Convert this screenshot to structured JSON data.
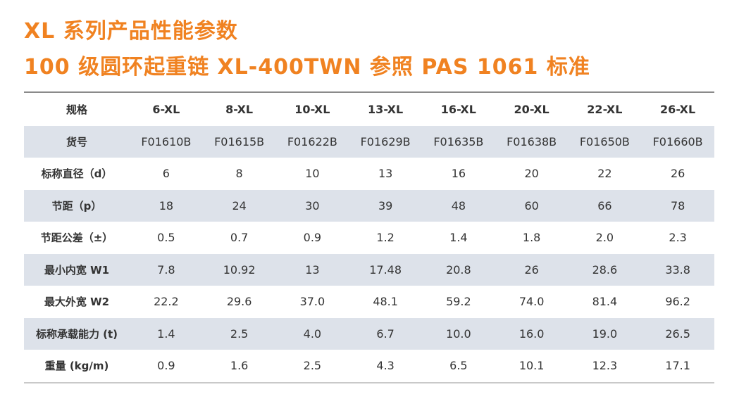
{
  "title": {
    "line1": "XL 系列产品性能参数",
    "line2": "100 级圆环起重链 XL-400TWN  参照 PAS 1061 标准"
  },
  "colors": {
    "accent": "#f08221",
    "row_shade": "#dde2ea",
    "text": "#333333"
  },
  "table": {
    "header": {
      "label": "规格",
      "values": [
        "6-XL",
        "8-XL",
        "10-XL",
        "13-XL",
        "16-XL",
        "20-XL",
        "22-XL",
        "26-XL"
      ]
    },
    "rows": [
      {
        "label": "货号",
        "values": [
          "F01610B",
          "F01615B",
          "F01622B",
          "F01629B",
          "F01635B",
          "F01638B",
          "F01650B",
          "F01660B"
        ]
      },
      {
        "label": "标称直径（d）",
        "values": [
          "6",
          "8",
          "10",
          "13",
          "16",
          "20",
          "22",
          "26"
        ]
      },
      {
        "label": "节距（p）",
        "values": [
          "18",
          "24",
          "30",
          "39",
          "48",
          "60",
          "66",
          "78"
        ]
      },
      {
        "label": "节距公差（±）",
        "values": [
          "0.5",
          "0.7",
          "0.9",
          "1.2",
          "1.4",
          "1.8",
          "2.0",
          "2.3"
        ]
      },
      {
        "label": "最小内宽 W1",
        "values": [
          "7.8",
          "10.92",
          "13",
          "17.48",
          "20.8",
          "26",
          "28.6",
          "33.8"
        ]
      },
      {
        "label": "最大外宽 W2",
        "values": [
          "22.2",
          "29.6",
          "37.0",
          "48.1",
          "59.2",
          "74.0",
          "81.4",
          "96.2"
        ]
      },
      {
        "label": "标称承载能力 (t)",
        "values": [
          "1.4",
          "2.5",
          "4.0",
          "6.7",
          "10.0",
          "16.0",
          "19.0",
          "26.5"
        ]
      },
      {
        "label": "重量 (kg/m)",
        "values": [
          "0.9",
          "1.6",
          "2.5",
          "4.3",
          "6.5",
          "10.1",
          "12.3",
          "17.1"
        ]
      }
    ]
  }
}
